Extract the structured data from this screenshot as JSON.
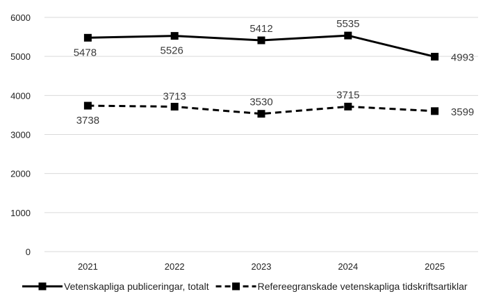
{
  "chart_data": {
    "type": "line",
    "title": "",
    "xlabel": "",
    "ylabel": "",
    "categories": [
      "2021",
      "2022",
      "2023",
      "2024",
      "2025"
    ],
    "ylim": [
      0,
      6000
    ],
    "yticks": [
      0,
      1000,
      2000,
      3000,
      4000,
      5000,
      6000
    ],
    "grid": true,
    "legend_position": "bottom",
    "series": [
      {
        "name": "Vetenskapliga publiceringar, totalt",
        "values": [
          5478,
          5526,
          5412,
          5535,
          4993
        ],
        "line_style": "solid",
        "marker": "square",
        "color": "#000000"
      },
      {
        "name": "Refereegranskade vetenskapliga tidskriftsartiklar",
        "values": [
          3738,
          3713,
          3530,
          3715,
          3599
        ],
        "line_style": "dashed",
        "marker": "square",
        "color": "#000000"
      }
    ]
  }
}
